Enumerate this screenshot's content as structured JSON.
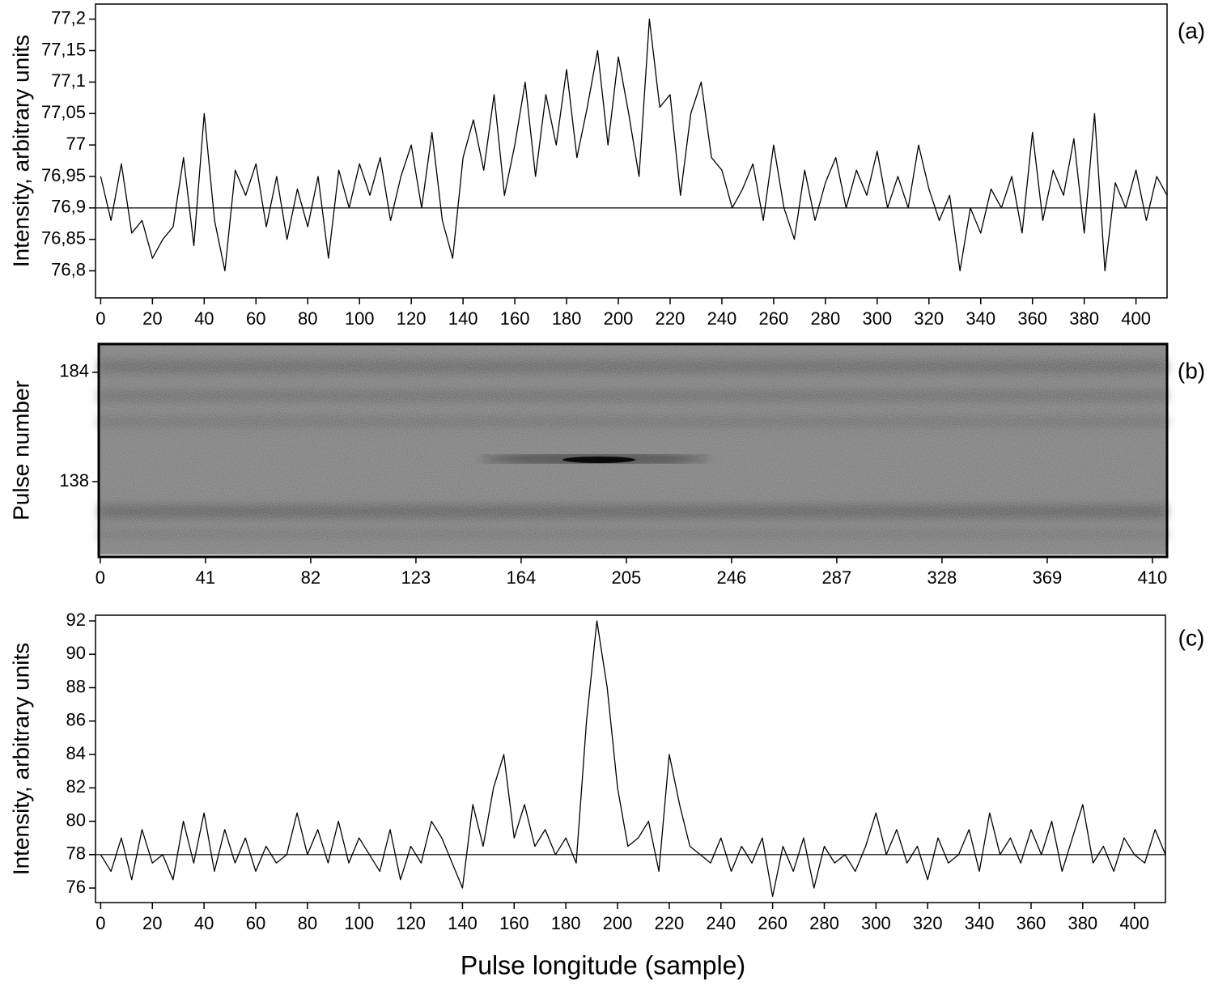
{
  "chart_data": [
    {
      "type": "line",
      "annotation": "(a)",
      "y_label": "Intensity, arbitrary units",
      "color": "#000000",
      "x": [
        0,
        4,
        8,
        12,
        16,
        20,
        24,
        28,
        32,
        36,
        40,
        44,
        48,
        52,
        56,
        60,
        64,
        68,
        72,
        76,
        80,
        84,
        88,
        92,
        96,
        100,
        104,
        108,
        112,
        116,
        120,
        124,
        128,
        132,
        136,
        140,
        144,
        148,
        152,
        156,
        160,
        164,
        168,
        172,
        176,
        180,
        184,
        188,
        192,
        196,
        200,
        204,
        208,
        212,
        216,
        220,
        224,
        228,
        232,
        236,
        240,
        244,
        248,
        252,
        256,
        260,
        264,
        268,
        272,
        276,
        280,
        284,
        288,
        292,
        296,
        300,
        304,
        308,
        312,
        316,
        320,
        324,
        328,
        332,
        336,
        340,
        344,
        348,
        352,
        356,
        360,
        364,
        368,
        372,
        376,
        380,
        384,
        388,
        392,
        396,
        400,
        404,
        408,
        412
      ],
      "values": [
        76.95,
        76.88,
        76.97,
        76.86,
        76.88,
        76.82,
        76.85,
        76.87,
        76.98,
        76.84,
        77.05,
        76.88,
        76.8,
        76.96,
        76.92,
        76.97,
        76.87,
        76.95,
        76.85,
        76.93,
        76.87,
        76.95,
        76.82,
        76.96,
        76.9,
        76.97,
        76.92,
        76.98,
        76.88,
        76.95,
        77.0,
        76.9,
        77.02,
        76.88,
        76.82,
        76.98,
        77.04,
        76.96,
        77.08,
        76.92,
        77.0,
        77.1,
        76.95,
        77.08,
        77.0,
        77.12,
        76.98,
        77.06,
        77.15,
        77.0,
        77.14,
        77.05,
        76.95,
        77.2,
        77.06,
        77.08,
        76.92,
        77.05,
        77.1,
        76.98,
        76.96,
        76.9,
        76.93,
        76.97,
        76.88,
        77.0,
        76.9,
        76.85,
        76.96,
        76.88,
        76.94,
        76.98,
        76.9,
        76.96,
        76.92,
        76.99,
        76.9,
        76.95,
        76.9,
        77.0,
        76.93,
        76.88,
        76.92,
        76.8,
        76.9,
        76.86,
        76.93,
        76.9,
        76.95,
        76.86,
        77.02,
        76.88,
        76.96,
        76.92,
        77.01,
        76.86,
        77.05,
        76.8,
        76.94,
        76.9,
        76.96,
        76.88,
        76.95,
        76.92
      ],
      "reference_line": 76.9,
      "xlim": [
        -2,
        412
      ],
      "xticks": [
        0,
        20,
        40,
        60,
        80,
        100,
        120,
        140,
        160,
        180,
        200,
        220,
        240,
        260,
        280,
        300,
        320,
        340,
        360,
        380,
        400
      ],
      "ylim": [
        76.757,
        77.224
      ],
      "yticks": [
        {
          "value": 76.8,
          "label": "76,8"
        },
        {
          "value": 76.85,
          "label": "76,85"
        },
        {
          "value": 76.9,
          "label": "76,9"
        },
        {
          "value": 76.95,
          "label": "76,95"
        },
        77,
        {
          "value": 77.05,
          "label": "77,05"
        },
        {
          "value": 77.1,
          "label": "77,1"
        },
        {
          "value": 77.15,
          "label": "77,15"
        },
        {
          "value": 77.2,
          "label": "77,2"
        }
      ]
    },
    {
      "type": "image",
      "annotation": "(b)",
      "y_label": "Pulse number",
      "xlim": [
        -0.6,
        415.7
      ],
      "xticks": [
        0,
        41,
        82,
        123,
        164,
        205,
        246,
        287,
        328,
        369,
        410
      ],
      "ylim": [
        106.3,
        195.9
      ],
      "yticks": [
        138,
        184
      ]
    },
    {
      "type": "line",
      "annotation": "(c)",
      "y_label": "Intensity, arbitrary units",
      "x_label": "Pulse longitude (sample)",
      "color": "#000000",
      "x": [
        0,
        4,
        8,
        12,
        16,
        20,
        24,
        28,
        32,
        36,
        40,
        44,
        48,
        52,
        56,
        60,
        64,
        68,
        72,
        76,
        80,
        84,
        88,
        92,
        96,
        100,
        104,
        108,
        112,
        116,
        120,
        124,
        128,
        132,
        136,
        140,
        144,
        148,
        152,
        156,
        160,
        164,
        168,
        172,
        176,
        180,
        184,
        188,
        192,
        196,
        200,
        204,
        208,
        212,
        216,
        220,
        224,
        228,
        232,
        236,
        240,
        244,
        248,
        252,
        256,
        260,
        264,
        268,
        272,
        276,
        280,
        284,
        288,
        292,
        296,
        300,
        304,
        308,
        312,
        316,
        320,
        324,
        328,
        332,
        336,
        340,
        344,
        348,
        352,
        356,
        360,
        364,
        368,
        372,
        376,
        380,
        384,
        388,
        392,
        396,
        400,
        404,
        408,
        412
      ],
      "values": [
        78,
        77,
        79,
        76.5,
        79.5,
        77.5,
        78,
        76.5,
        80,
        77.5,
        80.5,
        77,
        79.5,
        77.5,
        79,
        77,
        78.5,
        77.5,
        78,
        80.5,
        78,
        79.5,
        77.5,
        80,
        77.5,
        79,
        78,
        77,
        79.5,
        76.5,
        78.5,
        77.5,
        80,
        79,
        77.5,
        76,
        81,
        78.5,
        82,
        84,
        79,
        81,
        78.5,
        79.5,
        78,
        79,
        77.5,
        86,
        92,
        88,
        82,
        78.5,
        79,
        80,
        77,
        84,
        81,
        78.5,
        78,
        77.5,
        79,
        77,
        78.5,
        77.5,
        79,
        75.5,
        78.5,
        77,
        79,
        76,
        78.5,
        77.5,
        78,
        77,
        78.5,
        80.5,
        78,
        79.5,
        77.5,
        78.5,
        76.5,
        79,
        77.5,
        78,
        79.5,
        77,
        80.5,
        78,
        79,
        77.5,
        79.5,
        78,
        80,
        77,
        79,
        81,
        77.5,
        78.5,
        77,
        79,
        78,
        77.5,
        79.5,
        78
      ],
      "reference_line": 78,
      "xlim": [
        -2,
        412
      ],
      "xticks": [
        0,
        20,
        40,
        60,
        80,
        100,
        120,
        140,
        160,
        180,
        200,
        220,
        240,
        260,
        280,
        300,
        320,
        340,
        360,
        380,
        400
      ],
      "ylim": [
        75.13,
        92.34
      ],
      "yticks": [
        76,
        78,
        80,
        82,
        84,
        86,
        88,
        90,
        92
      ]
    }
  ]
}
